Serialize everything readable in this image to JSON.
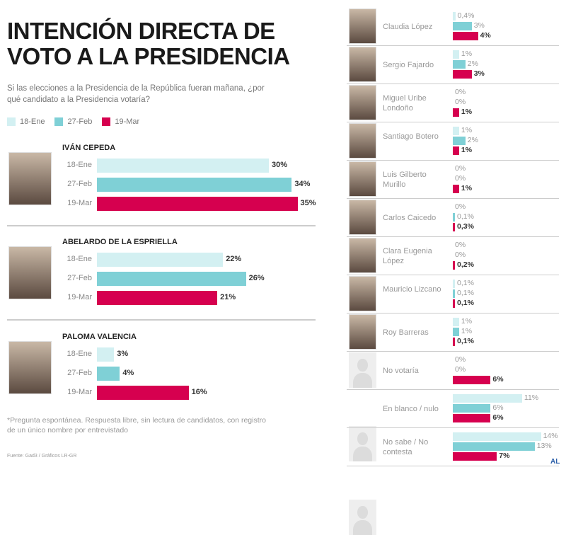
{
  "title": "INTENCIÓN DIRECTA DE VOTO A LA PRESIDENCIA",
  "subtitle": "Si las elecciones a la Presidencia de la República fueran mañana, ¿por qué candidato a la Presidencia votaría?",
  "footnote": "*Pregunta espontánea. Respuesta libre, sin lectura de candidatos, con registro de un único nombre por entrevistado",
  "source": "Fuente: Gad3 / Gráficos LR-GR",
  "logo": "AL",
  "colors": {
    "18-Ene": "#d3f0f2",
    "27-Feb": "#7fd0d6",
    "19-Mar": "#d6004f"
  },
  "chart_data": {
    "type": "bar",
    "orientation": "horizontal",
    "title": "INTENCIÓN DIRECTA DE VOTO A LA PRESIDENCIA",
    "unit": "%",
    "legend": [
      "18-Ene",
      "27-Feb",
      "19-Mar"
    ],
    "legend_position": "top-left",
    "main": [
      {
        "name": "IVÁN CEPEDA",
        "values": [
          30,
          34,
          35
        ],
        "labels": [
          "30%",
          "34%",
          "35%"
        ]
      },
      {
        "name": "ABELARDO DE LA ESPRIELLA",
        "values": [
          22,
          26,
          21
        ],
        "labels": [
          "22%",
          "26%",
          "21%"
        ]
      },
      {
        "name": "PALOMA VALENCIA",
        "values": [
          3,
          4,
          16
        ],
        "labels": [
          "3%",
          "4%",
          "16%"
        ]
      }
    ],
    "others": [
      {
        "name": "Claudia López",
        "values": [
          0.4,
          3,
          4
        ],
        "labels": [
          "0,4%",
          "3%",
          "4%"
        ],
        "photo": true
      },
      {
        "name": "Sergio Fajardo",
        "values": [
          1,
          2,
          3
        ],
        "labels": [
          "1%",
          "2%",
          "3%"
        ],
        "photo": true
      },
      {
        "name": "Miguel Uribe Londoño",
        "values": [
          0,
          0,
          1
        ],
        "labels": [
          "0%",
          "0%",
          "1%"
        ],
        "photo": true
      },
      {
        "name": "Santiago Botero",
        "values": [
          1,
          2,
          1
        ],
        "labels": [
          "1%",
          "2%",
          "1%"
        ],
        "photo": true
      },
      {
        "name": "Luis Gilberto Murillo",
        "values": [
          0,
          0,
          1
        ],
        "labels": [
          "0%",
          "0%",
          "1%"
        ],
        "photo": true
      },
      {
        "name": "Carlos Caicedo",
        "values": [
          0,
          0.1,
          0.3
        ],
        "labels": [
          "0%",
          "0,1%",
          "0,3%"
        ],
        "photo": true
      },
      {
        "name": "Clara Eugenia López",
        "values": [
          0,
          0,
          0.2
        ],
        "labels": [
          "0%",
          "0%",
          "0,2%"
        ],
        "photo": true
      },
      {
        "name": "Mauricio Lizcano",
        "values": [
          0.1,
          0.1,
          0.1
        ],
        "labels": [
          "0,1%",
          "0,1%",
          "0,1%"
        ],
        "photo": true
      },
      {
        "name": "Roy Barreras",
        "values": [
          1,
          1,
          0.1
        ],
        "labels": [
          "1%",
          "1%",
          "0,1%"
        ],
        "photo": true
      },
      {
        "name": "No votaría",
        "values": [
          0,
          0,
          6
        ],
        "labels": [
          "0%",
          "0%",
          "6%"
        ],
        "photo": false
      },
      {
        "name": "En blanco / nulo",
        "values": [
          11,
          6,
          6
        ],
        "labels": [
          "11%",
          "6%",
          "6%"
        ],
        "photo": false
      },
      {
        "name": "No sabe / No contesta",
        "values": [
          14,
          13,
          7
        ],
        "labels": [
          "14%",
          "13%",
          "7%"
        ],
        "photo": false
      }
    ]
  }
}
